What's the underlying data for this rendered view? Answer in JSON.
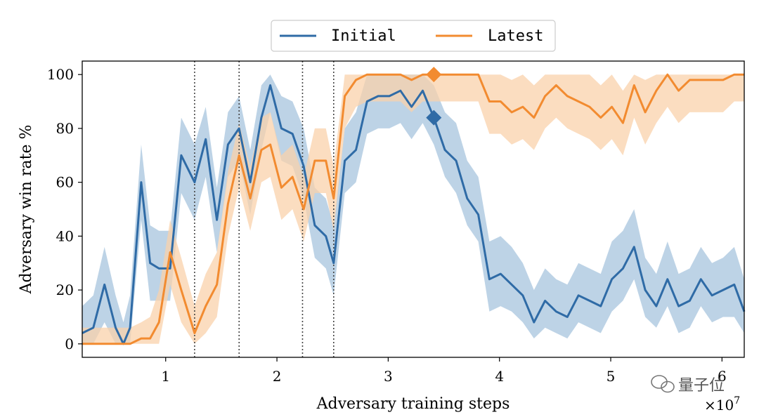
{
  "chart_data": {
    "type": "line",
    "xlabel": "Adversary training steps",
    "ylabel": "Adversary win rate %",
    "x_multiplier_label": "×10",
    "x_multiplier_exp": "7",
    "xlim": [
      0.25,
      6.2
    ],
    "ylim": [
      -5,
      105
    ],
    "xticks": [
      1,
      2,
      3,
      4,
      5,
      6
    ],
    "yticks": [
      0,
      20,
      40,
      60,
      80,
      100
    ],
    "vlines": [
      1.26,
      1.66,
      2.23,
      2.51
    ],
    "legend_position": "top-center",
    "series": [
      {
        "name": "Initial",
        "color": "#2f6ba6",
        "band_color": "#a7c4dd",
        "x": [
          0.25,
          0.35,
          0.45,
          0.55,
          0.62,
          0.68,
          0.78,
          0.86,
          0.94,
          1.04,
          1.14,
          1.26,
          1.36,
          1.46,
          1.56,
          1.66,
          1.76,
          1.86,
          1.94,
          2.04,
          2.14,
          2.24,
          2.34,
          2.44,
          2.51,
          2.61,
          2.71,
          2.81,
          2.91,
          3.01,
          3.11,
          3.21,
          3.31,
          3.41,
          3.51,
          3.61,
          3.71,
          3.81,
          3.91,
          4.01,
          4.11,
          4.21,
          4.31,
          4.41,
          4.51,
          4.61,
          4.71,
          4.81,
          4.91,
          5.01,
          5.11,
          5.21,
          5.31,
          5.41,
          5.51,
          5.61,
          5.71,
          5.81,
          5.91,
          6.01,
          6.11,
          6.2
        ],
        "y": [
          4,
          6,
          22,
          6,
          0,
          6,
          60,
          30,
          28,
          28,
          70,
          60,
          76,
          46,
          74,
          80,
          60,
          84,
          96,
          80,
          78,
          66,
          44,
          40,
          30,
          68,
          72,
          90,
          92,
          92,
          94,
          88,
          94,
          84,
          72,
          68,
          54,
          48,
          24,
          26,
          22,
          18,
          8,
          16,
          12,
          10,
          18,
          16,
          14,
          24,
          28,
          36,
          20,
          14,
          24,
          14,
          16,
          24,
          18,
          20,
          22,
          12
        ],
        "lower": [
          0,
          0,
          8,
          0,
          0,
          0,
          46,
          16,
          16,
          16,
          56,
          46,
          62,
          34,
          62,
          68,
          48,
          72,
          86,
          68,
          66,
          54,
          32,
          28,
          18,
          56,
          60,
          78,
          80,
          80,
          82,
          76,
          82,
          74,
          62,
          56,
          44,
          38,
          12,
          14,
          12,
          8,
          2,
          6,
          4,
          2,
          8,
          6,
          4,
          12,
          16,
          24,
          10,
          6,
          14,
          4,
          6,
          14,
          8,
          10,
          10,
          4
        ],
        "upper": [
          14,
          18,
          36,
          18,
          8,
          18,
          74,
          44,
          42,
          42,
          84,
          74,
          88,
          58,
          86,
          92,
          72,
          96,
          100,
          92,
          90,
          80,
          58,
          54,
          44,
          80,
          86,
          100,
          100,
          100,
          100,
          100,
          100,
          96,
          86,
          82,
          68,
          62,
          38,
          40,
          36,
          30,
          20,
          28,
          24,
          22,
          30,
          28,
          26,
          38,
          42,
          50,
          32,
          26,
          38,
          26,
          28,
          36,
          30,
          32,
          36,
          24
        ]
      },
      {
        "name": "Latest",
        "color": "#f28b30",
        "band_color": "#f9d1ab",
        "x": [
          0.25,
          0.35,
          0.45,
          0.55,
          0.62,
          0.68,
          0.78,
          0.86,
          0.94,
          1.04,
          1.14,
          1.26,
          1.36,
          1.46,
          1.56,
          1.66,
          1.76,
          1.86,
          1.94,
          2.04,
          2.14,
          2.24,
          2.34,
          2.44,
          2.51,
          2.61,
          2.71,
          2.81,
          2.91,
          3.01,
          3.11,
          3.21,
          3.31,
          3.41,
          3.51,
          3.61,
          3.71,
          3.81,
          3.91,
          4.01,
          4.11,
          4.21,
          4.31,
          4.41,
          4.51,
          4.61,
          4.71,
          4.81,
          4.91,
          5.01,
          5.11,
          5.21,
          5.31,
          5.41,
          5.51,
          5.61,
          5.71,
          5.81,
          5.91,
          6.01,
          6.11,
          6.2
        ],
        "y": [
          0,
          0,
          0,
          0,
          0,
          0,
          2,
          2,
          8,
          34,
          20,
          4,
          14,
          22,
          52,
          70,
          54,
          72,
          74,
          58,
          62,
          50,
          68,
          68,
          54,
          92,
          98,
          100,
          100,
          100,
          100,
          98,
          100,
          100,
          100,
          100,
          100,
          100,
          90,
          90,
          86,
          88,
          84,
          92,
          96,
          92,
          90,
          88,
          84,
          88,
          82,
          96,
          86,
          94,
          100,
          94,
          98,
          98,
          98,
          98,
          100,
          100
        ],
        "lower": [
          0,
          0,
          0,
          0,
          0,
          0,
          0,
          0,
          0,
          22,
          8,
          0,
          4,
          10,
          40,
          58,
          42,
          60,
          62,
          46,
          50,
          38,
          56,
          56,
          42,
          80,
          88,
          90,
          90,
          90,
          90,
          86,
          90,
          90,
          90,
          90,
          90,
          90,
          78,
          78,
          74,
          76,
          72,
          80,
          84,
          80,
          78,
          76,
          72,
          76,
          70,
          84,
          74,
          82,
          88,
          82,
          86,
          86,
          86,
          86,
          90,
          90
        ],
        "upper": [
          6,
          6,
          6,
          6,
          6,
          6,
          8,
          10,
          20,
          46,
          32,
          14,
          26,
          34,
          64,
          82,
          66,
          84,
          86,
          70,
          74,
          62,
          80,
          80,
          66,
          100,
          100,
          100,
          100,
          100,
          100,
          100,
          100,
          100,
          100,
          100,
          100,
          100,
          100,
          100,
          98,
          100,
          96,
          100,
          100,
          100,
          100,
          100,
          96,
          100,
          94,
          100,
          98,
          100,
          100,
          100,
          100,
          100,
          100,
          100,
          100,
          100
        ]
      }
    ],
    "markers": [
      {
        "series": "Latest",
        "x": 3.41,
        "y": 100
      },
      {
        "series": "Initial",
        "x": 3.41,
        "y": 84
      }
    ]
  },
  "watermark": {
    "icon": "wechat-icon",
    "text": "量子位"
  }
}
